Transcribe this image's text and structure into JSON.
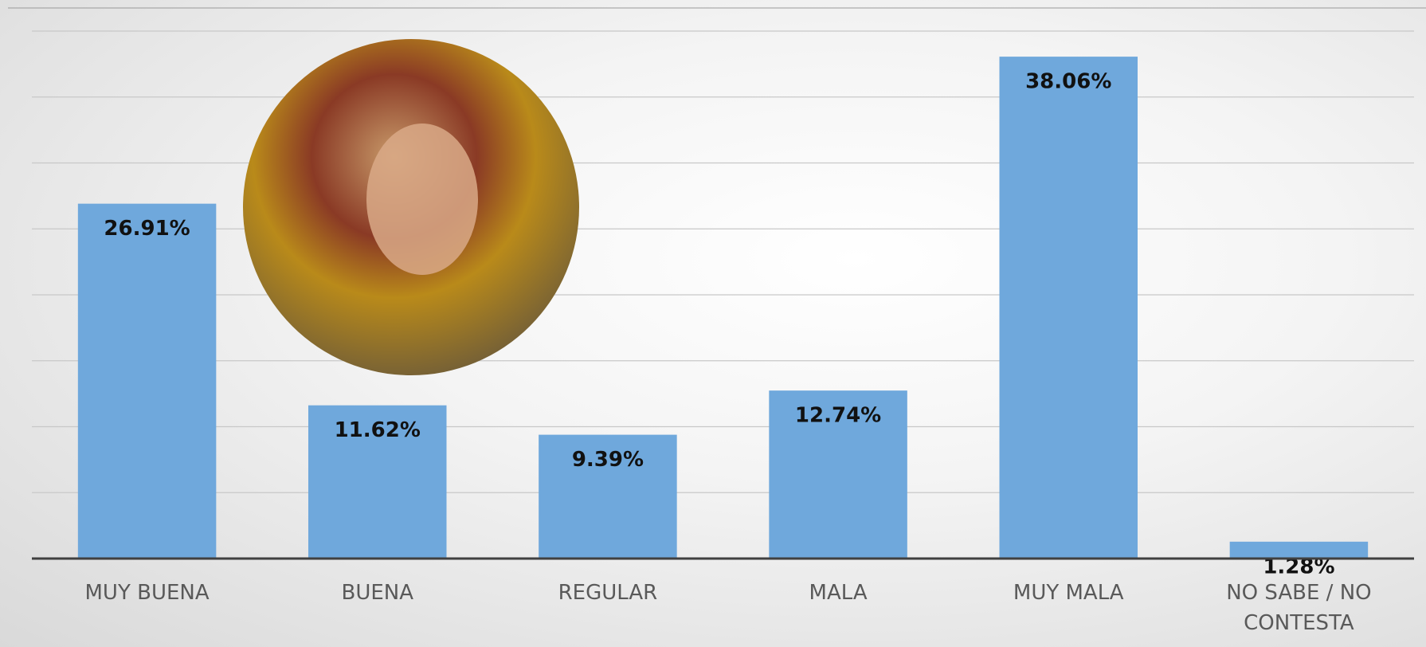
{
  "chart_data": {
    "type": "bar",
    "categories": [
      "MUY BUENA",
      "BUENA",
      "REGULAR",
      "MALA",
      "MUY MALA",
      "NO SABE / NO CONTESTA"
    ],
    "values": [
      26.91,
      11.62,
      9.39,
      12.74,
      38.06,
      1.28
    ],
    "value_labels": [
      "26.91%",
      "11.62%",
      "9.39%",
      "12.74%",
      "38.06%",
      "1.28%"
    ],
    "color": "#6fa8dc",
    "ylim": [
      0,
      40
    ],
    "yticks": [
      0,
      5,
      10,
      15,
      20,
      25,
      30,
      35,
      40
    ],
    "grid": true
  }
}
